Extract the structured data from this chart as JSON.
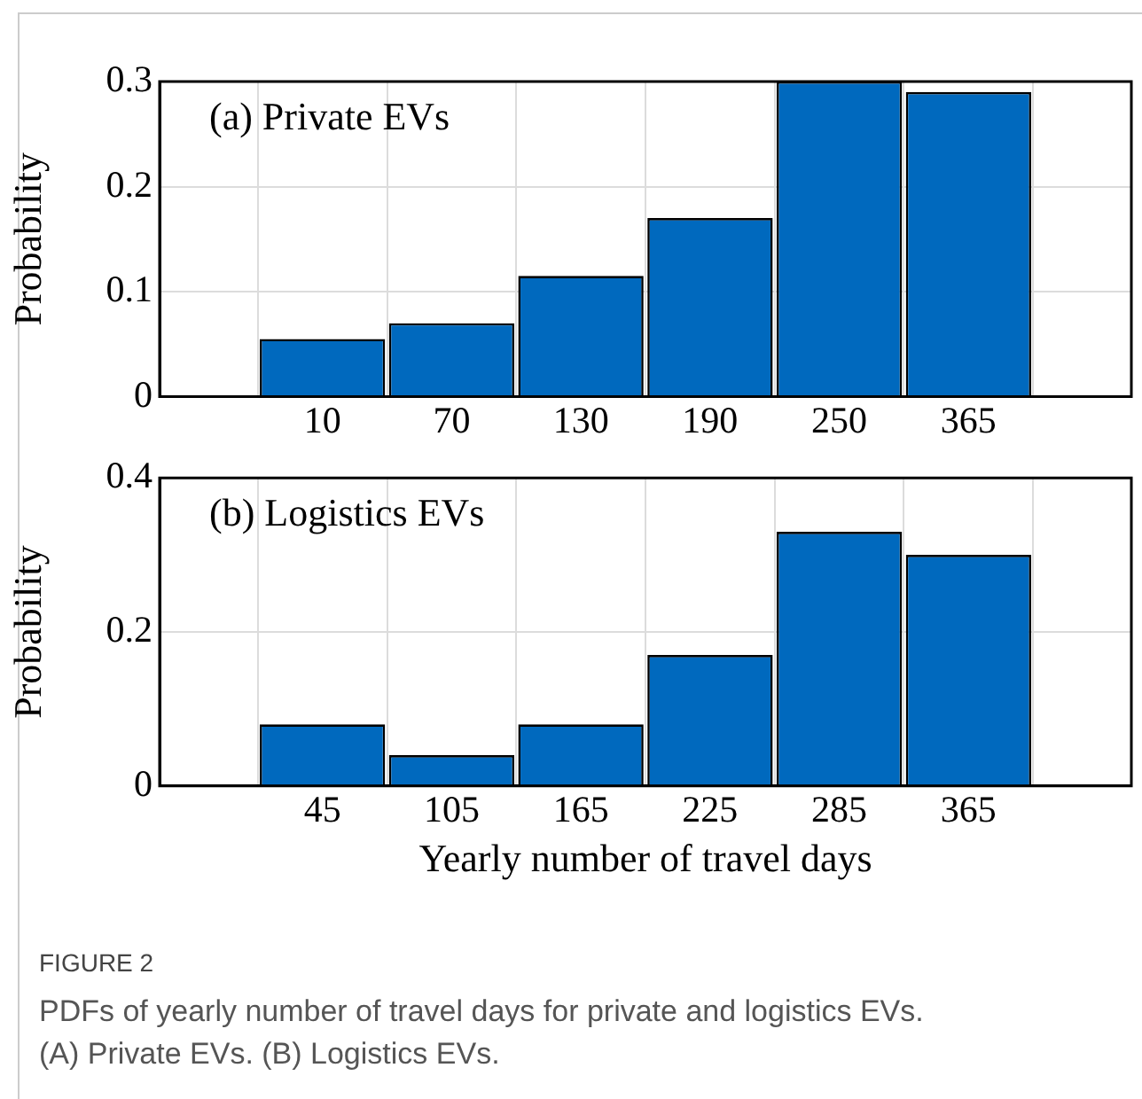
{
  "chart_data": [
    {
      "type": "bar",
      "title": "(a) Private EVs",
      "ylabel": "Probability",
      "categories": [
        "10",
        "70",
        "130",
        "190",
        "250",
        "365"
      ],
      "values": [
        0.055,
        0.07,
        0.115,
        0.17,
        0.3,
        0.29
      ],
      "color": "#0069be",
      "ylim": [
        0,
        0.3
      ],
      "yticks": [
        0,
        0.1,
        0.2,
        0.3
      ],
      "grid": true
    },
    {
      "type": "bar",
      "title": "(b) Logistics EVs",
      "ylabel": "Probability",
      "xlabel": "Yearly number of travel days",
      "categories": [
        "45",
        "105",
        "165",
        "225",
        "285",
        "365"
      ],
      "values": [
        0.08,
        0.04,
        0.08,
        0.17,
        0.33,
        0.3
      ],
      "color": "#0069be",
      "ylim": [
        0,
        0.4
      ],
      "yticks": [
        0,
        0.2,
        0.4
      ],
      "grid": true,
      "annotations": [
        "FIGURE 2",
        "PDFs of yearly number of travel days for private and logistics EVs.",
        "(A) Private EVs. (B) Logistics EVs."
      ]
    }
  ]
}
